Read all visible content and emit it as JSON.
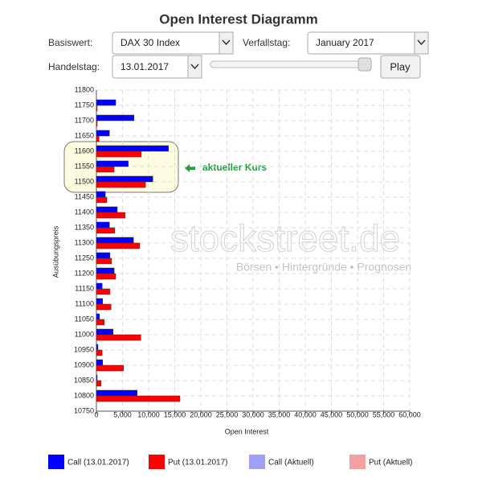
{
  "controls": {
    "basiswert_label": "Basiswert:",
    "basiswert_value": "DAX 30 Index",
    "verfallstag_label": "Verfallstag:",
    "verfallstag_value": "January 2017",
    "handelstag_label": "Handelstag:",
    "handelstag_value": "13.01.2017",
    "play_button": "Play"
  },
  "watermark": {
    "brand": "stockstreet.de",
    "slogan": "Börsen • Hintergründe • Prognosen"
  },
  "chart_data": {
    "type": "bar",
    "title": "Open Interest Diagramm",
    "x_label": "Open Interest",
    "y_label": "Ausübungspreis",
    "annotation": "aktueller Kurs",
    "categories": [
      "11800",
      "11750",
      "11700",
      "11650",
      "11600",
      "11550",
      "11500",
      "11450",
      "11400",
      "11350",
      "11300",
      "11250",
      "11200",
      "11150",
      "11100",
      "11050",
      "11000",
      "10950",
      "10900",
      "10850",
      "10800",
      "10750"
    ],
    "series": [
      {
        "name": "Call (13.01.2017)",
        "color": "#0000ff",
        "values": [
          0,
          3700,
          7200,
          2500,
          13800,
          6100,
          10800,
          1700,
          4000,
          2500,
          7100,
          2600,
          3400,
          1100,
          1200,
          600,
          3200,
          300,
          1200,
          150,
          7800,
          0
        ]
      },
      {
        "name": "Put (13.01.2017)",
        "color": "#ff0000",
        "values": [
          0,
          150,
          150,
          500,
          8600,
          3400,
          9400,
          2000,
          5500,
          3500,
          8300,
          2900,
          3700,
          2600,
          2800,
          1500,
          8500,
          1100,
          5200,
          900,
          16000,
          0
        ]
      },
      {
        "name": "Call (Aktuell)",
        "color": "#a0a0f4",
        "values": [
          null,
          null,
          null,
          null,
          null,
          null,
          null,
          null,
          null,
          null,
          null,
          null,
          null,
          null,
          null,
          null,
          null,
          null,
          null,
          null,
          null,
          null
        ]
      },
      {
        "name": "Put (Aktuell)",
        "color": "#f4a0a0",
        "values": [
          null,
          null,
          null,
          null,
          null,
          null,
          null,
          null,
          null,
          null,
          null,
          null,
          null,
          null,
          null,
          null,
          null,
          null,
          null,
          null,
          null,
          null
        ]
      }
    ],
    "xlim": [
      0,
      60000
    ],
    "xticks": [
      0,
      {
        "value": 5000,
        "label": "5,000"
      },
      {
        "value": 10000,
        "label": "10,000"
      },
      {
        "value": 15000,
        "label": "15,000"
      },
      {
        "value": 20000,
        "label": "20,000"
      },
      {
        "value": 25000,
        "label": "25,000"
      },
      {
        "value": 30000,
        "label": "30,000"
      },
      {
        "value": 35000,
        "label": "35,000"
      },
      {
        "value": 40000,
        "label": "40,000"
      },
      {
        "value": 45000,
        "label": "45,000"
      },
      {
        "value": 50000,
        "label": "50,000"
      },
      {
        "value": 55000,
        "label": "55,000"
      },
      {
        "value": 60000,
        "label": "60,000"
      }
    ],
    "grid": true
  }
}
